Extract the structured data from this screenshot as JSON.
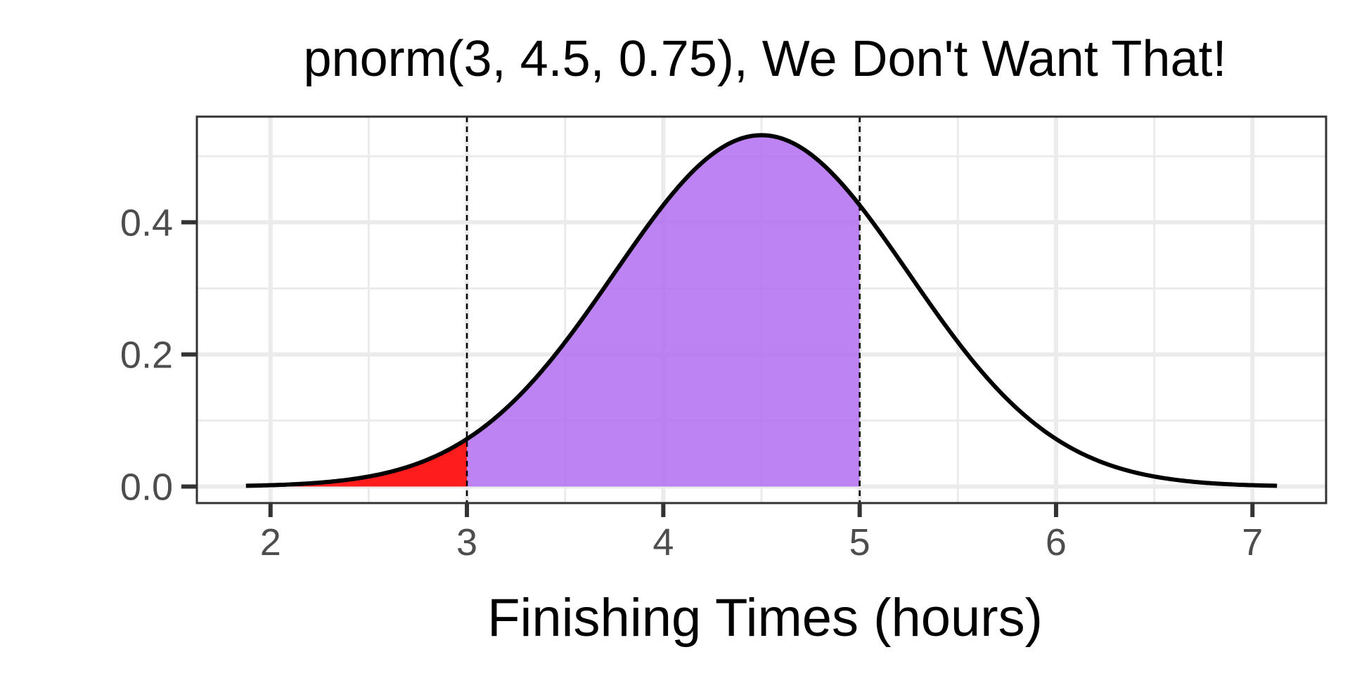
{
  "chart_data": {
    "type": "area",
    "title": "pnorm(3, 4.5, 0.75), We Don't Want That!",
    "xlabel": "Finishing Times (hours)",
    "ylabel": "",
    "distribution": {
      "family": "normal",
      "mean": 4.5,
      "sd": 0.75
    },
    "curve_x_range": [
      1.875,
      7.125
    ],
    "xlim": [
      1.625,
      7.375
    ],
    "ylim": [
      -0.025,
      0.56
    ],
    "x_ticks": [
      2,
      3,
      4,
      5,
      6,
      7
    ],
    "x_tick_labels": [
      "2",
      "3",
      "4",
      "5",
      "6",
      "7"
    ],
    "y_ticks": [
      0.0,
      0.2,
      0.4
    ],
    "y_tick_labels": [
      "0.0",
      "0.2",
      "0.4"
    ],
    "x_minor_gridlines": [
      2.5,
      3.5,
      4.5,
      5.5,
      6.5
    ],
    "y_minor_gridlines": [
      0.1,
      0.3,
      0.5
    ],
    "grid": true,
    "shaded_regions": [
      {
        "from": 1.875,
        "to": 3,
        "color": "#ff1c1c"
      },
      {
        "from": 3,
        "to": 5,
        "color": "#b26df0"
      }
    ],
    "reference_lines": [
      {
        "x": 3,
        "style": "dashed",
        "color": "#000000"
      },
      {
        "x": 5,
        "style": "dashed",
        "color": "#000000"
      }
    ],
    "curve_color": "#000000",
    "panel_border_color": "#333333",
    "grid_color": "#ebebeb"
  }
}
